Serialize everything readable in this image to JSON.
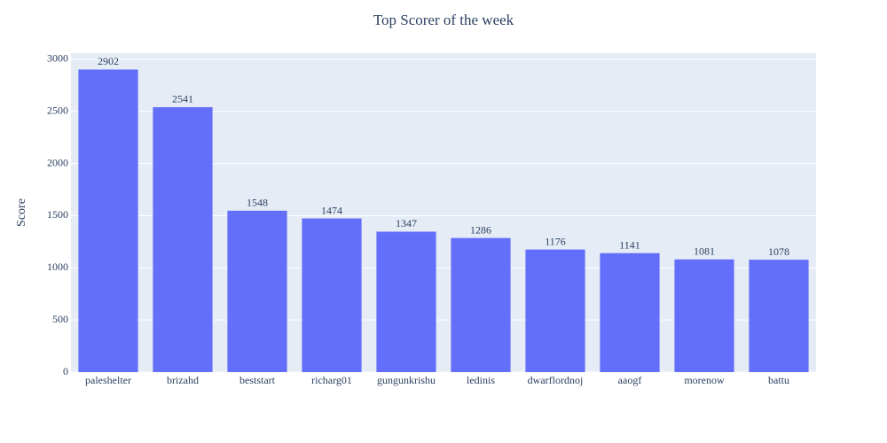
{
  "chart_data": {
    "type": "bar",
    "title": "Top Scorer of the week",
    "y_label": "Score",
    "categories": [
      "paleshelter",
      "brizahd",
      "beststart",
      "richarg01",
      "gungunkrishu",
      "ledinis",
      "dwarflordnoj",
      "aaogf",
      "morenow",
      "battu"
    ],
    "values": [
      2902,
      2541,
      1548,
      1474,
      1347,
      1286,
      1176,
      1141,
      1081,
      1078
    ],
    "color": "#636efa",
    "ylim": [
      0,
      3059
    ],
    "yticks": [
      0,
      500,
      1000,
      1500,
      2000,
      2500,
      3000
    ],
    "grid": true
  }
}
